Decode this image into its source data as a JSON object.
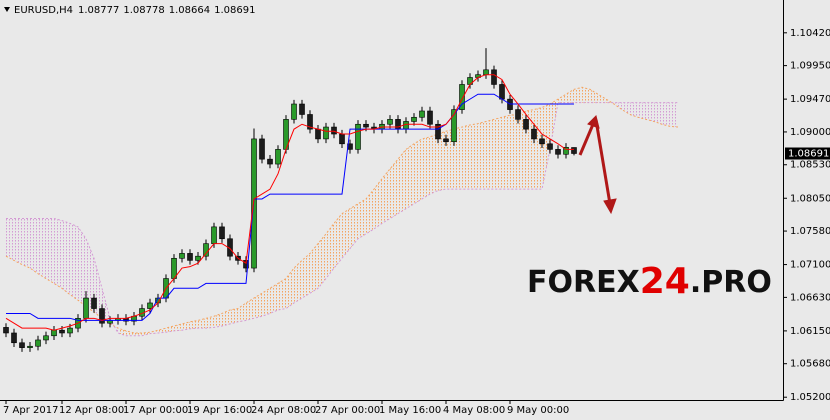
{
  "header": {
    "symbol": "EURUSD,H4"
  },
  "watermark": {
    "parts": [
      "FOREX",
      "24",
      ".PRO"
    ]
  },
  "chart_data": {
    "type": "candlestick",
    "x": [
      "7 Apr 2017",
      null,
      null,
      null,
      null,
      null,
      null,
      "12 Apr 08:00",
      null,
      null,
      null,
      null,
      null,
      null,
      null,
      "17 Apr 00:00",
      null,
      null,
      null,
      null,
      null,
      null,
      null,
      "19 Apr 16:00",
      null,
      null,
      null,
      null,
      null,
      null,
      null,
      "24 Apr 08:00",
      null,
      null,
      null,
      null,
      null,
      null,
      null,
      "27 Apr 00:00",
      null,
      null,
      null,
      null,
      null,
      null,
      null,
      "1 May 16:00",
      null,
      null,
      null,
      null,
      null,
      null,
      null,
      "4 May 08:00",
      null,
      null,
      null,
      null,
      null,
      null,
      null,
      "9 May 00:00",
      null,
      null,
      null,
      null,
      null,
      null,
      null,
      null,
      null,
      null,
      null,
      null,
      null,
      null,
      null,
      null,
      null,
      null,
      null,
      null,
      null
    ],
    "open": [
      1.062,
      1.0612,
      1.0598,
      1.0591,
      1.0593,
      1.0602,
      1.0608,
      1.0616,
      1.0612,
      1.0619,
      1.0633,
      1.0662,
      1.0647,
      1.0626,
      1.063,
      1.0633,
      1.0629,
      1.0636,
      1.0647,
      1.0655,
      1.0662,
      1.069,
      1.0719,
      1.0726,
      1.0716,
      1.0722,
      1.074,
      1.0764,
      1.0747,
      1.0722,
      1.0716,
      1.0705,
      1.089,
      1.0861,
      1.0854,
      1.0875,
      1.0918,
      1.094,
      1.0925,
      1.0904,
      1.089,
      1.0907,
      1.0897,
      1.0883,
      1.0875,
      1.0911,
      1.0907,
      1.0904,
      1.0911,
      1.0918,
      1.0904,
      1.0915,
      1.0921,
      1.093,
      1.0911,
      1.089,
      1.0886,
      1.0932,
      1.0968,
      1.0978,
      1.0982,
      1.0989,
      1.0968,
      1.0947,
      1.0932,
      1.0918,
      1.0904,
      1.089,
      1.0883,
      1.0875,
      1.0868,
      1.08777,
      null,
      null,
      null,
      null,
      null,
      null,
      null,
      null,
      null,
      null,
      null,
      null,
      null
    ],
    "high": [
      1.0626,
      1.0618,
      1.0604,
      1.0599,
      1.0608,
      1.0614,
      1.0622,
      1.0622,
      1.0625,
      1.0639,
      1.0672,
      1.0668,
      1.0653,
      1.0636,
      1.0639,
      1.0639,
      1.0642,
      1.0653,
      1.0661,
      1.0668,
      1.0696,
      1.0725,
      1.0732,
      1.0732,
      1.0728,
      1.0746,
      1.077,
      1.077,
      1.0753,
      1.0728,
      1.0722,
      1.0905,
      1.0896,
      1.0867,
      1.0881,
      1.0924,
      1.0946,
      1.0946,
      1.0931,
      1.091,
      1.0913,
      1.0913,
      1.0903,
      1.0889,
      1.0917,
      1.0917,
      1.0913,
      1.0917,
      1.0924,
      1.0924,
      1.0921,
      1.0927,
      1.0936,
      1.0936,
      1.0917,
      1.0896,
      1.0938,
      1.0974,
      1.0984,
      1.0988,
      1.102,
      1.0995,
      1.0974,
      1.0953,
      1.0938,
      1.0924,
      1.091,
      1.0896,
      1.0889,
      1.0881,
      1.0884,
      1.08778,
      null,
      null,
      null,
      null,
      null,
      null,
      null,
      null,
      null,
      null,
      null,
      null,
      null
    ],
    "low": [
      1.0606,
      1.0592,
      1.0585,
      1.0585,
      1.0587,
      1.0596,
      1.0602,
      1.0606,
      1.0606,
      1.0613,
      1.0627,
      1.0641,
      1.062,
      1.062,
      1.0624,
      1.0623,
      1.0623,
      1.063,
      1.0641,
      1.0649,
      1.0656,
      1.0684,
      1.0713,
      1.071,
      1.071,
      1.0716,
      1.0734,
      1.0741,
      1.0716,
      1.071,
      1.0699,
      1.0699,
      1.0855,
      1.0848,
      1.0848,
      1.0869,
      1.0912,
      1.0919,
      1.0898,
      1.0884,
      1.0884,
      1.0891,
      1.0877,
      1.0869,
      1.0869,
      1.0901,
      1.0898,
      1.0898,
      1.0905,
      1.0898,
      1.0898,
      1.0909,
      1.0915,
      1.0905,
      1.0884,
      1.088,
      1.088,
      1.0926,
      1.0962,
      1.0972,
      1.0976,
      1.0962,
      1.0941,
      1.0926,
      1.0912,
      1.0898,
      1.0884,
      1.0877,
      1.0869,
      1.0862,
      1.0862,
      1.08664,
      null,
      null,
      null,
      null,
      null,
      null,
      null,
      null,
      null,
      null,
      null,
      null,
      null
    ],
    "close": [
      1.0612,
      1.0598,
      1.0591,
      1.0593,
      1.0602,
      1.0608,
      1.0616,
      1.0612,
      1.0619,
      1.0633,
      1.0662,
      1.0647,
      1.0626,
      1.063,
      1.0633,
      1.0629,
      1.0636,
      1.0647,
      1.0655,
      1.0662,
      1.069,
      1.0719,
      1.0726,
      1.0716,
      1.0722,
      1.074,
      1.0764,
      1.0747,
      1.0722,
      1.0716,
      1.0705,
      1.089,
      1.0861,
      1.0854,
      1.0875,
      1.0918,
      1.094,
      1.0925,
      1.0904,
      1.089,
      1.0907,
      1.0897,
      1.0883,
      1.0875,
      1.0911,
      1.0907,
      1.0904,
      1.0911,
      1.0918,
      1.0904,
      1.0915,
      1.0921,
      1.093,
      1.0911,
      1.089,
      1.0886,
      1.0932,
      1.0968,
      1.0978,
      1.0982,
      1.0989,
      1.0968,
      1.0947,
      1.0932,
      1.0918,
      1.0904,
      1.089,
      1.0883,
      1.0875,
      1.0868,
      1.0878,
      1.08691,
      null,
      null,
      null,
      null,
      null,
      null,
      null,
      null,
      null,
      null,
      null,
      null,
      null
    ],
    "up_color": "#2a9a2a",
    "down_color": "#1c1c1c",
    "tenkan": {
      "color": "#ff0000",
      "values": [
        1.0633,
        1.0626,
        1.0619,
        1.0619,
        1.0619,
        1.0619,
        1.0616,
        1.0619,
        1.0622,
        1.0626,
        1.0633,
        1.0633,
        1.063,
        1.0633,
        1.0633,
        1.0633,
        1.0636,
        1.064,
        1.0645,
        1.0655,
        1.0676,
        1.069,
        1.0705,
        1.0707,
        1.0712,
        1.0726,
        1.074,
        1.074,
        1.0733,
        1.0719,
        1.0712,
        1.0804,
        1.0811,
        1.0818,
        1.084,
        1.0875,
        1.0904,
        1.0911,
        1.0907,
        1.0904,
        1.0901,
        1.0901,
        1.0897,
        1.0897,
        1.0901,
        1.0904,
        1.0904,
        1.0907,
        1.0907,
        1.0907,
        1.0911,
        1.0911,
        1.0911,
        1.0907,
        1.0907,
        1.0911,
        1.0925,
        1.0947,
        1.0968,
        1.0978,
        1.0982,
        1.0982,
        1.0975,
        1.0954,
        1.094,
        1.0925,
        1.0911,
        1.0897,
        1.089,
        1.0883,
        1.0875,
        1.0875,
        null,
        null,
        null,
        null,
        null,
        null,
        null,
        null,
        null,
        null,
        null,
        null,
        null
      ]
    },
    "kijun": {
      "color": "#0000ff",
      "values": [
        1.064,
        1.064,
        1.064,
        1.064,
        1.0633,
        1.0633,
        1.0633,
        1.0633,
        1.0633,
        1.063,
        1.063,
        1.063,
        1.063,
        1.063,
        1.063,
        1.063,
        1.063,
        1.063,
        1.064,
        1.0662,
        1.0662,
        1.0676,
        1.0676,
        1.0676,
        1.0676,
        1.0683,
        1.0683,
        1.0683,
        1.0683,
        1.0683,
        1.0683,
        1.0804,
        1.0804,
        1.0811,
        1.0811,
        1.0811,
        1.0811,
        1.0811,
        1.0811,
        1.0811,
        1.0811,
        1.0811,
        1.0811,
        1.0904,
        1.0904,
        1.0904,
        1.0904,
        1.0904,
        1.0904,
        1.0904,
        1.0904,
        1.0904,
        1.0904,
        1.0904,
        1.0904,
        1.0911,
        1.0925,
        1.094,
        1.0947,
        1.0954,
        1.0954,
        1.0954,
        1.0947,
        1.094,
        1.094,
        1.094,
        1.094,
        1.094,
        1.094,
        1.094,
        1.094,
        1.094,
        null,
        null,
        null,
        null,
        null,
        null,
        null,
        null,
        null,
        null,
        null,
        null,
        null
      ]
    },
    "span_a": {
      "color": "#f4a460",
      "values": [
        1.0722,
        1.0716,
        1.071,
        1.0705,
        1.0697,
        1.069,
        1.0683,
        1.0676,
        1.0667,
        1.0659,
        1.065,
        1.0642,
        1.0633,
        1.0625,
        1.0619,
        1.0615,
        1.0612,
        1.0612,
        1.0613,
        1.0616,
        1.0619,
        1.0622,
        1.0625,
        1.0628,
        1.063,
        1.0633,
        1.0636,
        1.064,
        1.0645,
        1.0647,
        1.0655,
        1.0662,
        1.0669,
        1.0676,
        1.0683,
        1.069,
        1.0705,
        1.0716,
        1.0726,
        1.074,
        1.0754,
        1.0769,
        1.0783,
        1.079,
        1.0797,
        1.0804,
        1.0818,
        1.0833,
        1.0847,
        1.0861,
        1.0875,
        1.0883,
        1.089,
        1.0893,
        1.0897,
        1.0901,
        1.0904,
        1.0907,
        1.091,
        1.0912,
        1.0915,
        1.0918,
        1.0921,
        1.0924,
        1.0925,
        1.093,
        1.0932,
        1.0935,
        1.094,
        1.0947,
        1.0954,
        1.0961,
        1.0964,
        1.0961,
        1.0954,
        1.0947,
        1.094,
        1.0932,
        1.0925,
        1.0921,
        1.0918,
        1.0915,
        1.0911,
        1.0908,
        1.0907
      ]
    },
    "span_b": {
      "color": "#d49ad4",
      "values": [
        1.0776,
        1.0776,
        1.0776,
        1.0776,
        1.0776,
        1.0776,
        1.0776,
        1.0773,
        1.0769,
        1.0764,
        1.0747,
        1.0719,
        1.0676,
        1.0633,
        1.0612,
        1.0608,
        1.0608,
        1.0608,
        1.0611,
        1.0612,
        1.0613,
        1.0615,
        1.0616,
        1.0618,
        1.0619,
        1.0619,
        1.062,
        1.0622,
        1.0625,
        1.0628,
        1.063,
        1.0633,
        1.0636,
        1.064,
        1.0645,
        1.0647,
        1.0655,
        1.0662,
        1.0669,
        1.0676,
        1.069,
        1.0705,
        1.0719,
        1.0733,
        1.0747,
        1.0754,
        1.0761,
        1.0769,
        1.0776,
        1.0783,
        1.079,
        1.0797,
        1.0804,
        1.0811,
        1.0816,
        1.0818,
        1.0818,
        1.0818,
        1.0818,
        1.0818,
        1.0818,
        1.0818,
        1.0818,
        1.0818,
        1.0818,
        1.0818,
        1.0818,
        1.0818,
        1.0875,
        1.0942,
        1.0942,
        1.0942,
        1.0942,
        1.0942,
        1.0942,
        1.0942,
        1.0942,
        1.0942,
        1.0942,
        1.0942,
        1.0942,
        1.0942,
        1.0942,
        1.0942,
        1.0942
      ]
    },
    "ylim": [
      1.0516,
      1.1089
    ],
    "yticks": [
      {
        "value": 1.1042,
        "label": "1.10420"
      },
      {
        "value": 1.0995,
        "label": "1.09950"
      },
      {
        "value": 1.0947,
        "label": "1.09470"
      },
      {
        "value": 1.09,
        "label": "1.09000"
      },
      {
        "value": 1.0853,
        "label": "1.08530"
      },
      {
        "value": 1.0805,
        "label": "1.08050"
      },
      {
        "value": 1.0758,
        "label": "1.07580"
      },
      {
        "value": 1.071,
        "label": "1.07100"
      },
      {
        "value": 1.0663,
        "label": "1.06630"
      },
      {
        "value": 1.0615,
        "label": "1.06150"
      },
      {
        "value": 1.0568,
        "label": "1.05680"
      },
      {
        "value": 1.052,
        "label": "1.05200"
      }
    ],
    "grid": false
  }
}
